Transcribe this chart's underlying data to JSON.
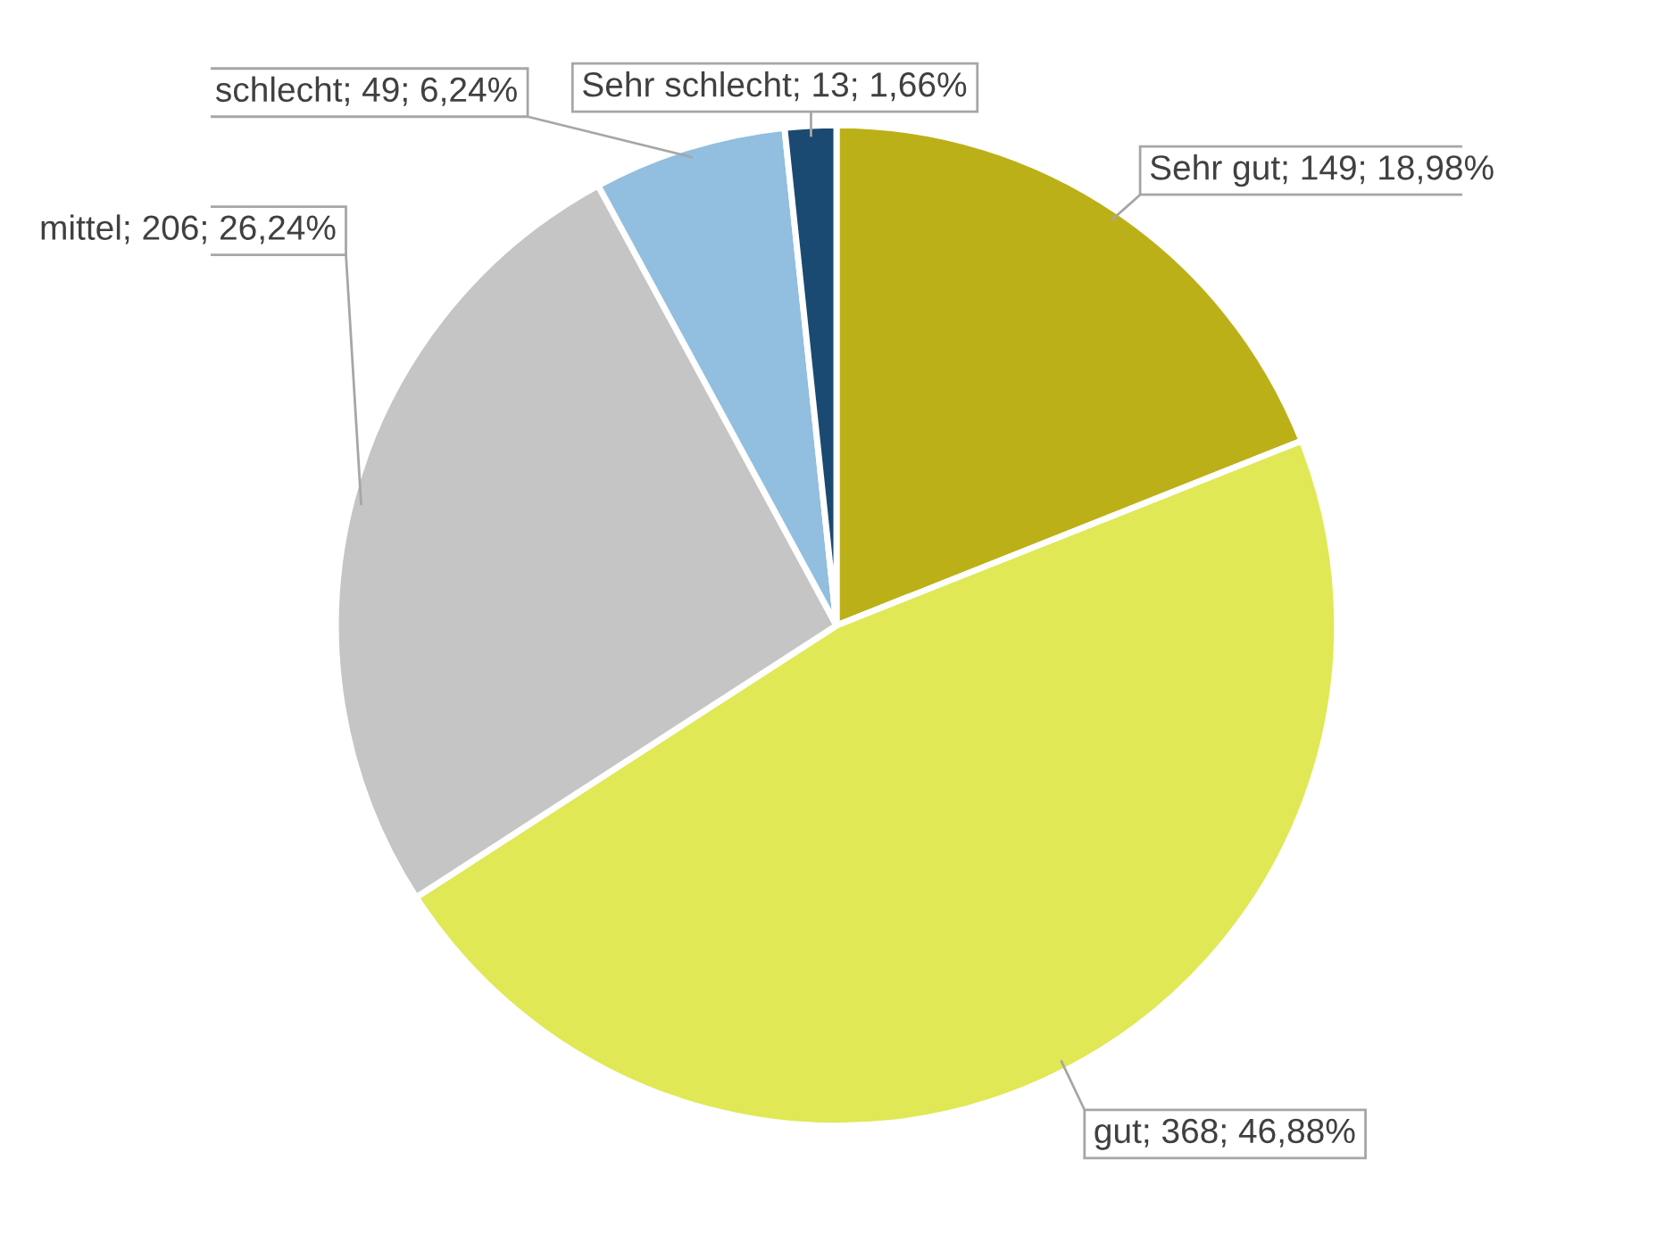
{
  "chart_data": {
    "type": "pie",
    "categories": [
      "Sehr gut",
      "gut",
      "mittel",
      "schlecht",
      "Sehr schlecht"
    ],
    "values": [
      149,
      368,
      206,
      49,
      13
    ],
    "value_labels": [
      "; 149; 18,98%",
      "; 368; 46,88%",
      "; 206; 26,24%",
      "; 49; 6,24%",
      "; 13; 1,66%"
    ],
    "colors": [
      "#bcb018",
      "#e0e855",
      "#c4c5c4",
      "#92bedf",
      "#1a4a72"
    ]
  }
}
